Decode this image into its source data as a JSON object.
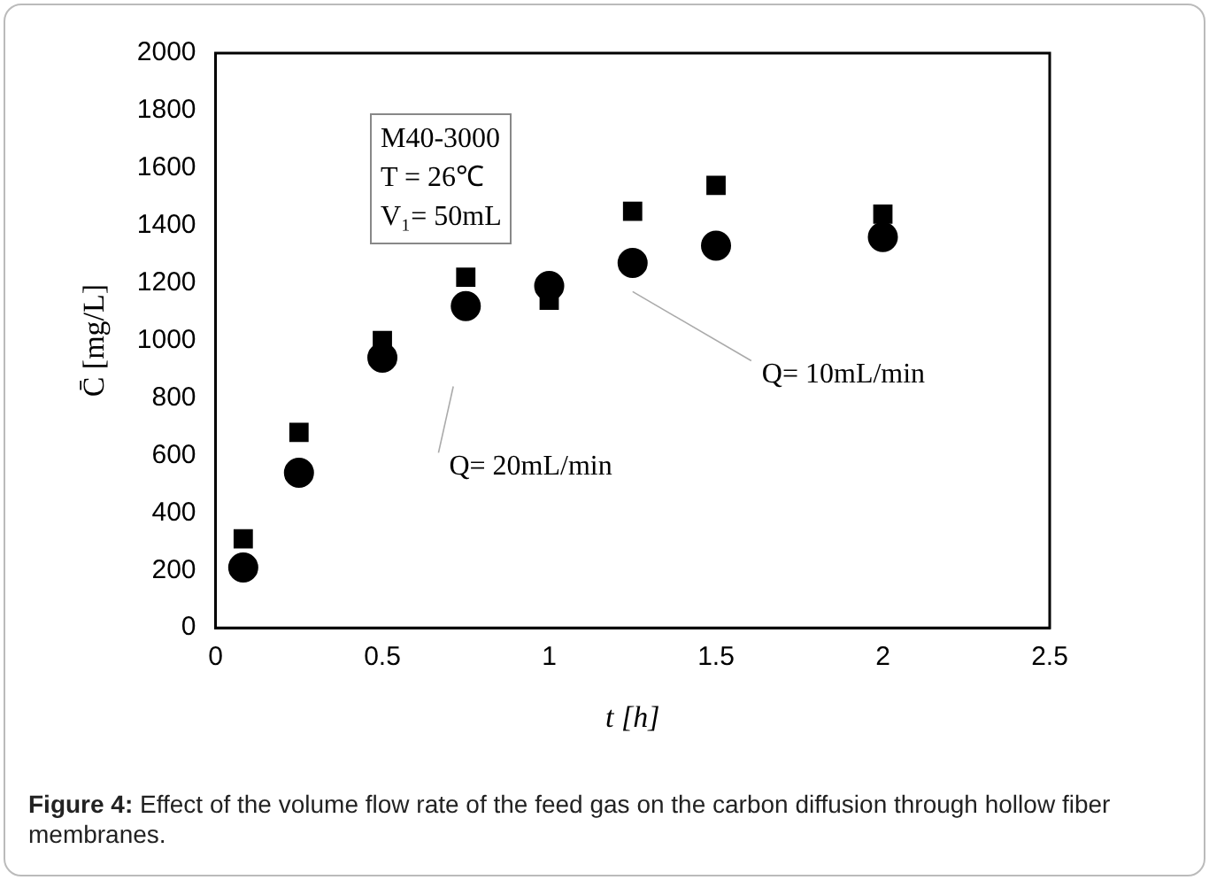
{
  "chart_data": {
    "type": "scatter",
    "xlabel": "t [h]",
    "ylabel": "C̄ [mg/L]",
    "x": [
      0.083,
      0.25,
      0.5,
      0.75,
      1,
      1.25,
      1.5,
      2
    ],
    "series": [
      {
        "color": "#000000",
        "marker": "square",
        "values": [
          310,
          680,
          1000,
          1220,
          1140,
          1450,
          1540,
          1440
        ]
      },
      {
        "color": "#000000",
        "marker": "circle",
        "values": [
          210,
          540,
          940,
          1120,
          1190,
          1270,
          1330,
          1360
        ]
      }
    ],
    "xlim": [
      0,
      2.5
    ],
    "xticks": [
      0,
      0.5,
      1,
      1.5,
      2,
      2.5
    ],
    "ylim": [
      0,
      2000
    ],
    "yticks": [
      0,
      200,
      400,
      600,
      800,
      1000,
      1200,
      1400,
      1600,
      1800,
      2000
    ],
    "grid": false,
    "legend": false,
    "annotations": [
      "Q= 20mL/min",
      "Q= 10mL/min",
      "M40-3000",
      "T = 26℃",
      "V₁= 50mL",
      "Figure 4: Effect of the volume flow rate of the feed gas on the carbon diffusion through hollow fiber membranes."
    ]
  }
}
